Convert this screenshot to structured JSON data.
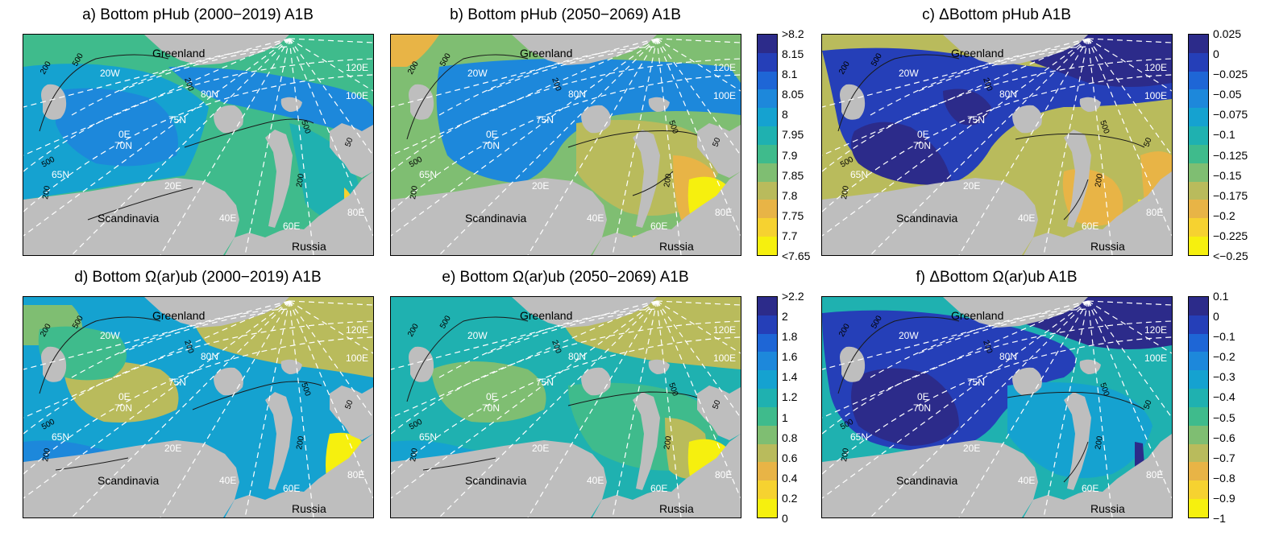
{
  "panels": [
    {
      "id": "a",
      "title": "a) Bottom pHub (2000−2019) A1B",
      "colorbar": 1,
      "scheme": "a"
    },
    {
      "id": "b",
      "title": "b) Bottom pHub (2050−2069) A1B",
      "colorbar": 1,
      "scheme": "b"
    },
    {
      "id": "c",
      "title": "c) ΔBottom pHub A1B",
      "colorbar": 2,
      "scheme": "c"
    },
    {
      "id": "d",
      "title": "d) Bottom Ω(ar)ub (2000−2019) A1B",
      "colorbar": 3,
      "scheme": "d"
    },
    {
      "id": "e",
      "title": "e) Bottom Ω(ar)ub (2050−2069) A1B",
      "colorbar": 3,
      "scheme": "e"
    },
    {
      "id": "f",
      "title": "f) ΔBottom Ω(ar)ub A1B",
      "colorbar": 4,
      "scheme": "f"
    }
  ],
  "map_labels": {
    "regions": [
      "Greenland",
      "Scandinavia",
      "Russia"
    ],
    "longitudes": [
      "20W",
      "0E",
      "20E",
      "40E",
      "60E",
      "80E",
      "100E",
      "120E"
    ],
    "latitudes": [
      "65N",
      "70N",
      "75N",
      "80N"
    ],
    "contours": [
      "200",
      "500",
      "50"
    ]
  },
  "colorbars": [
    {
      "ticks": [
        ">8.2",
        "8.15",
        "8.1",
        "8.05",
        "8",
        "7.95",
        "7.9",
        "7.85",
        "7.8",
        "7.75",
        "7.7",
        "<7.65"
      ]
    },
    {
      "ticks": [
        "0.025",
        "0",
        "−0.025",
        "−0.05",
        "−0.075",
        "−0.1",
        "−0.125",
        "−0.15",
        "−0.175",
        "−0.2",
        "−0.225",
        "<−0.25"
      ]
    },
    {
      "ticks": [
        ">2.2",
        "2",
        "1.8",
        "1.6",
        "1.4",
        "1.2",
        "1",
        "0.8",
        "0.6",
        "0.4",
        "0.2",
        "0"
      ]
    },
    {
      "ticks": [
        "0.1",
        "0",
        "−0.1",
        "−0.2",
        "−0.3",
        "−0.4",
        "−0.5",
        "−0.6",
        "−0.7",
        "−0.8",
        "−0.9",
        "−1"
      ]
    }
  ],
  "palette": [
    "#2c2b8a",
    "#253fb8",
    "#1e66d6",
    "#1d88db",
    "#15a2d0",
    "#1fb1b0",
    "#3fbb8c",
    "#7fbe72",
    "#b9bb5c",
    "#e8b446",
    "#f6d230",
    "#f6f00e"
  ],
  "land_color": "#bebebe"
}
